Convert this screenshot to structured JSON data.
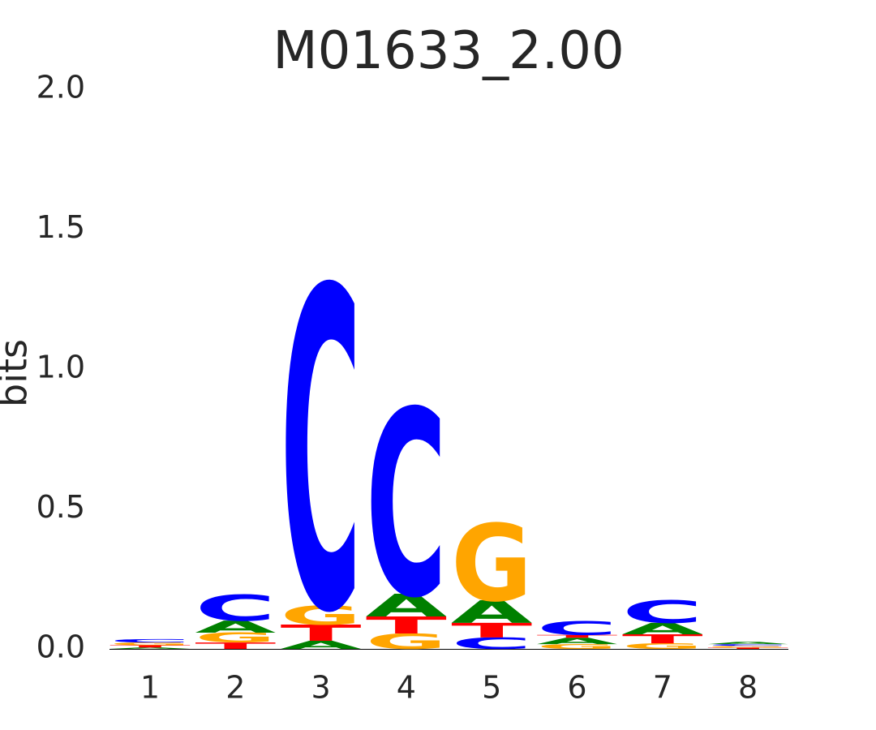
{
  "chart_data": {
    "type": "logo",
    "title": "M01633_2.00",
    "y_label": "bits",
    "categories": [
      "1",
      "2",
      "3",
      "4",
      "5",
      "6",
      "7",
      "8"
    ],
    "colors": {
      "A": "#008000",
      "C": "#0000ff",
      "G": "#ffa500",
      "T": "#ff0000"
    },
    "stacks": [
      [
        {
          "letter": "A",
          "value": 0.005
        },
        {
          "letter": "T",
          "value": 0.008
        },
        {
          "letter": "G",
          "value": 0.01
        },
        {
          "letter": "C",
          "value": 0.012
        }
      ],
      [
        {
          "letter": "T",
          "value": 0.023
        },
        {
          "letter": "G",
          "value": 0.035
        },
        {
          "letter": "A",
          "value": 0.043
        },
        {
          "letter": "C",
          "value": 0.093
        }
      ],
      [
        {
          "letter": "A",
          "value": 0.029
        },
        {
          "letter": "T",
          "value": 0.058
        },
        {
          "letter": "G",
          "value": 0.067
        },
        {
          "letter": "C",
          "value": 1.145
        }
      ],
      [
        {
          "letter": "G",
          "value": 0.055
        },
        {
          "letter": "T",
          "value": 0.061
        },
        {
          "letter": "A",
          "value": 0.081
        },
        {
          "letter": "C",
          "value": 0.664
        }
      ],
      [
        {
          "letter": "C",
          "value": 0.041
        },
        {
          "letter": "T",
          "value": 0.052
        },
        {
          "letter": "A",
          "value": 0.081
        },
        {
          "letter": "G",
          "value": 0.275
        }
      ],
      [
        {
          "letter": "G",
          "value": 0.017
        },
        {
          "letter": "A",
          "value": 0.023
        },
        {
          "letter": "T",
          "value": 0.01
        },
        {
          "letter": "C",
          "value": 0.049
        }
      ],
      [
        {
          "letter": "G",
          "value": 0.02
        },
        {
          "letter": "T",
          "value": 0.032
        },
        {
          "letter": "A",
          "value": 0.041
        },
        {
          "letter": "C",
          "value": 0.081
        }
      ],
      [
        {
          "letter": "T",
          "value": 0.005
        },
        {
          "letter": "G",
          "value": 0.006
        },
        {
          "letter": "C",
          "value": 0.006
        },
        {
          "letter": "A",
          "value": 0.008
        }
      ]
    ],
    "ylim": [
      0,
      2
    ],
    "yticks": [
      {
        "value": 0,
        "label": "0.0"
      },
      {
        "value": 0.5,
        "label": "0.5"
      },
      {
        "value": 1,
        "label": "1.0"
      },
      {
        "value": 1.5,
        "label": "1.5"
      },
      {
        "value": 2,
        "label": "2.0"
      }
    ]
  }
}
